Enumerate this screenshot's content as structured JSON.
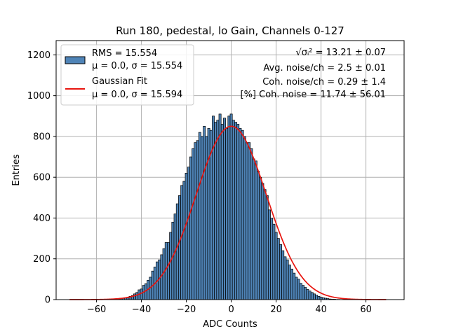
{
  "chart_data": {
    "type": "bar",
    "title": "Run 180, pedestal, lo Gain, Channels 0-127",
    "xlabel": "ADC Counts",
    "ylabel": "Entries",
    "xlim": [
      -78,
      77
    ],
    "ylim": [
      0,
      1270
    ],
    "xticks": [
      -60,
      -40,
      -20,
      0,
      20,
      40,
      60
    ],
    "yticks": [
      0,
      200,
      400,
      600,
      800,
      1000,
      1200
    ],
    "xtick_labels": [
      "−60",
      "−40",
      "−20",
      "0",
      "20",
      "40",
      "60"
    ],
    "ytick_labels": [
      "0",
      "200",
      "400",
      "600",
      "800",
      "1000",
      "1200"
    ],
    "grid": true,
    "legend_position": "top-left",
    "colors": {
      "hist_fill": "#4f84b7",
      "hist_edge": "#000000",
      "fit_line": "#e8150f",
      "grid": "#b0b0b0"
    },
    "legend": [
      {
        "kind": "histogram",
        "line1": "RMS = 15.554",
        "line2": "μ = 0.0, σ = 15.554"
      },
      {
        "kind": "line",
        "line1": "Gaussian Fit",
        "line2": "μ = 0.0, σ = 15.594"
      }
    ],
    "annotations": [
      "√σᵢ² = 13.21 ± 0.07",
      "Avg. noise/ch = 2.5 ± 0.01",
      "Coh. noise/ch = 0.29 ± 1.4",
      "[%] Coh. noise = 11.74 ± 56.01"
    ],
    "histogram": {
      "bin_width": 1,
      "bin_centers": [
        -72,
        -71,
        -70,
        -69,
        -68,
        -67,
        -66,
        -65,
        -64,
        -63,
        -62,
        -61,
        -60,
        -59,
        -58,
        -57,
        -56,
        -55,
        -54,
        -53,
        -52,
        -51,
        -50,
        -49,
        -48,
        -47,
        -46,
        -45,
        -44,
        -43,
        -42,
        -41,
        -40,
        -39,
        -38,
        -37,
        -36,
        -35,
        -34,
        -33,
        -32,
        -31,
        -30,
        -29,
        -28,
        -27,
        -26,
        -25,
        -24,
        -23,
        -22,
        -21,
        -20,
        -19,
        -18,
        -17,
        -16,
        -15,
        -14,
        -13,
        -12,
        -11,
        -10,
        -9,
        -8,
        -7,
        -6,
        -5,
        -4,
        -3,
        -2,
        -1,
        0,
        1,
        2,
        3,
        4,
        5,
        6,
        7,
        8,
        9,
        10,
        11,
        12,
        13,
        14,
        15,
        16,
        17,
        18,
        19,
        20,
        21,
        22,
        23,
        24,
        25,
        26,
        27,
        28,
        29,
        30,
        31,
        32,
        33,
        34,
        35,
        36,
        37,
        38,
        39,
        40,
        41,
        42,
        43,
        44,
        45,
        46,
        47,
        48,
        49,
        50,
        51,
        52,
        53,
        54,
        55,
        56,
        57,
        58,
        59,
        60,
        61,
        62,
        63,
        64,
        65,
        66,
        67,
        68,
        69
      ],
      "counts": [
        0,
        0,
        0,
        0,
        0,
        0,
        0,
        0,
        0,
        0,
        0,
        0,
        0,
        0,
        0,
        0,
        0,
        1,
        1,
        1,
        2,
        2,
        3,
        4,
        6,
        8,
        12,
        16,
        20,
        28,
        35,
        48,
        52,
        70,
        78,
        95,
        110,
        140,
        160,
        185,
        195,
        220,
        250,
        280,
        280,
        330,
        380,
        420,
        470,
        510,
        560,
        580,
        620,
        650,
        700,
        740,
        770,
        780,
        820,
        800,
        850,
        800,
        840,
        830,
        900,
        870,
        880,
        910,
        860,
        890,
        840,
        900,
        910,
        880,
        870,
        860,
        840,
        830,
        800,
        770,
        770,
        740,
        690,
        680,
        630,
        600,
        570,
        540,
        510,
        440,
        400,
        370,
        330,
        300,
        270,
        240,
        210,
        195,
        170,
        150,
        130,
        110,
        100,
        80,
        70,
        60,
        50,
        42,
        35,
        28,
        22,
        16,
        12,
        9,
        7,
        5,
        3,
        2,
        2,
        1,
        1,
        0,
        0,
        0,
        0,
        0,
        0,
        0,
        0,
        0,
        0,
        0,
        0,
        0,
        0,
        0,
        0,
        0
      ]
    },
    "fit": {
      "mu": 0.0,
      "sigma": 15.594,
      "amplitude": 850,
      "x_range": [
        -72,
        69
      ]
    }
  }
}
